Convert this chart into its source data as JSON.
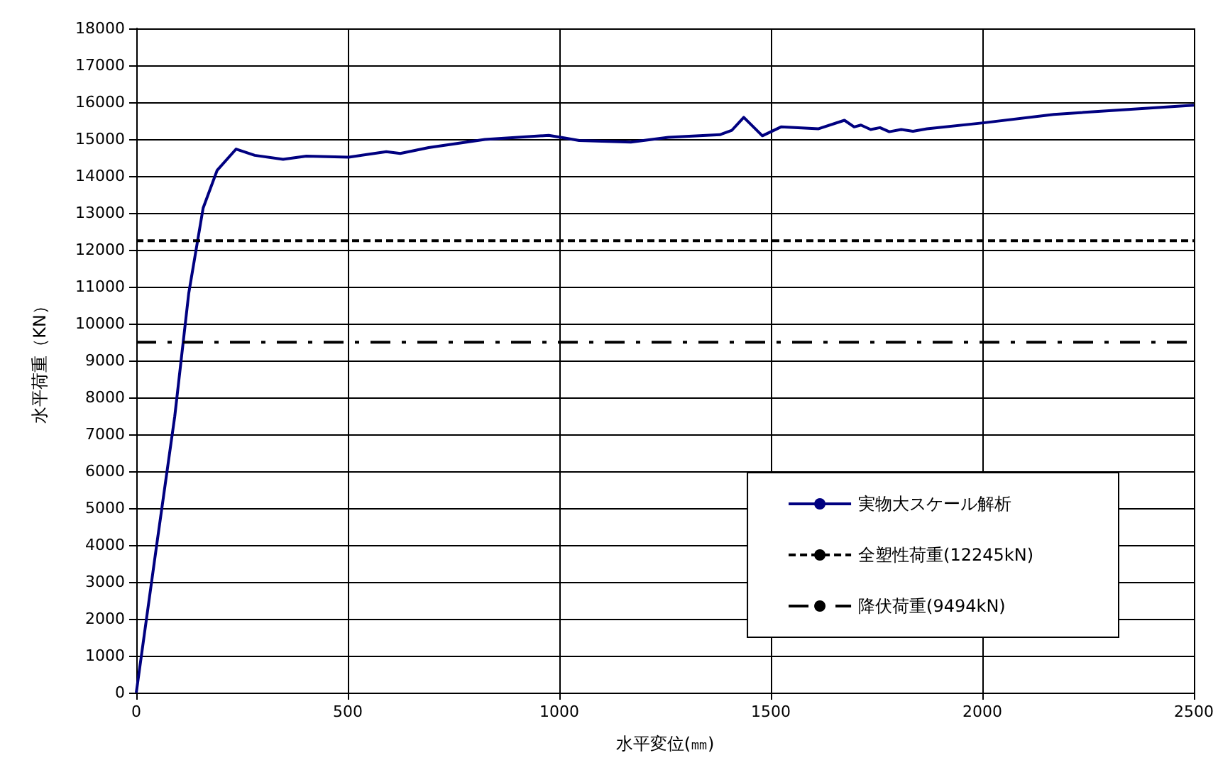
{
  "chart_data": {
    "type": "line",
    "xlabel": "水平変位(㎜)",
    "ylabel": "水平荷重（KN）",
    "xlim": [
      0,
      2500
    ],
    "xticks": [
      0,
      500,
      1000,
      1500,
      2000,
      2500
    ],
    "ylim": [
      0,
      18000
    ],
    "yticks": [
      0,
      1000,
      2000,
      3000,
      4000,
      5000,
      6000,
      7000,
      8000,
      9000,
      10000,
      11000,
      12000,
      13000,
      14000,
      15000,
      16000,
      17000,
      18000
    ],
    "grid": true,
    "legend": "bottom right",
    "marker": "none",
    "series": [
      {
        "name": "実物大スケール解析",
        "color": "#000080",
        "line_style": "solid",
        "x": [
          0,
          47,
          91,
          124,
          158,
          191,
          236,
          280,
          347,
          402,
          502,
          591,
          624,
          691,
          824,
          947,
          975,
          1013,
          1047,
          1169,
          1258,
          1380,
          1408,
          1436,
          1480,
          1524,
          1613,
          1674,
          1697,
          1713,
          1736,
          1758,
          1780,
          1808,
          1836,
          1869,
          2002,
          2169,
          2500
        ],
        "values": [
          0,
          3900,
          7490,
          10820,
          13130,
          14150,
          14730,
          14560,
          14450,
          14540,
          14510,
          14660,
          14610,
          14770,
          14990,
          15080,
          15100,
          15030,
          14960,
          14920,
          15050,
          15120,
          15240,
          15590,
          15090,
          15330,
          15280,
          15510,
          15330,
          15380,
          15260,
          15310,
          15200,
          15260,
          15210,
          15280,
          15440,
          15670,
          15920
        ]
      },
      {
        "name": "全塑性荷重(12245kN)",
        "color": "#000000",
        "line_style": "dashed",
        "x": [
          0,
          2500
        ],
        "values": [
          12245,
          12245
        ]
      },
      {
        "name": "降伏荷重(9494kN)",
        "color": "#000000",
        "line_style": "dashdot",
        "x": [
          0,
          2500
        ],
        "values": [
          9494,
          9494
        ]
      }
    ]
  }
}
